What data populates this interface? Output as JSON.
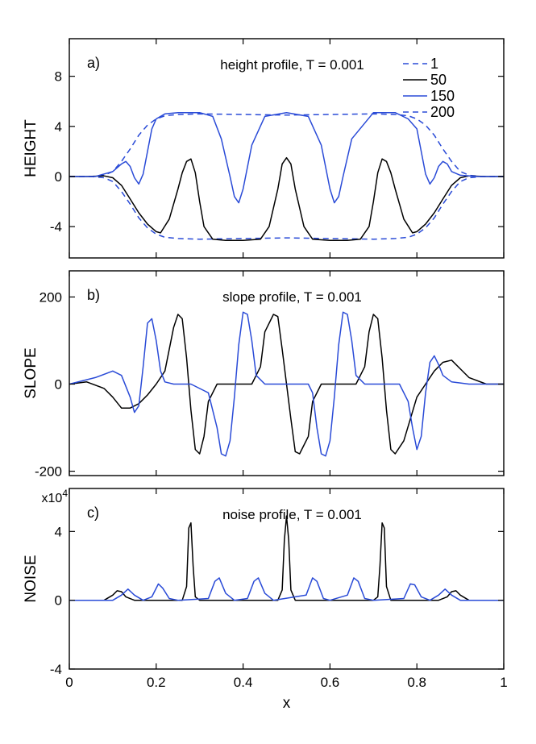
{
  "colors": {
    "blue": "#2a4bd7",
    "black": "#000000"
  },
  "chart_data": [
    {
      "type": "line",
      "panel_tag": "a)",
      "title": "height profile, T = 0.001",
      "xlabel": "",
      "ylabel": "HEIGHT",
      "xlim": [
        0,
        1
      ],
      "ylim": [
        -6.5,
        11
      ],
      "yticks": [
        -4,
        0,
        4,
        8
      ],
      "ytick_labels": [
        "-4",
        "0",
        "4",
        "8"
      ],
      "legend": {
        "position": "top-right",
        "entries": [
          "1",
          "50",
          "150",
          "200"
        ]
      },
      "series": [
        {
          "name": "1",
          "color": "#2a4bd7",
          "dash": "dashed",
          "x": [
            0,
            0.05,
            0.08,
            0.1,
            0.12,
            0.14,
            0.16,
            0.18,
            0.2,
            0.22,
            0.25,
            0.3,
            0.4,
            0.5,
            0.6,
            0.7,
            0.75,
            0.78,
            0.8,
            0.82,
            0.84,
            0.86,
            0.88,
            0.9,
            0.92,
            0.95,
            1.0
          ],
          "y": [
            0,
            0,
            0.1,
            0.4,
            1.2,
            2.2,
            3.3,
            4.1,
            4.6,
            4.85,
            4.95,
            5.0,
            4.95,
            4.9,
            4.95,
            5.0,
            4.95,
            4.85,
            4.6,
            4.1,
            3.3,
            2.2,
            1.2,
            0.4,
            0.1,
            0,
            0
          ]
        },
        {
          "name": "1 (lower)",
          "color": "#2a4bd7",
          "dash": "dashed",
          "x": [
            0,
            0.05,
            0.08,
            0.1,
            0.12,
            0.14,
            0.16,
            0.18,
            0.2,
            0.22,
            0.25,
            0.3,
            0.4,
            0.5,
            0.6,
            0.7,
            0.75,
            0.78,
            0.8,
            0.82,
            0.84,
            0.86,
            0.88,
            0.9,
            0.92,
            0.95,
            1.0
          ],
          "y": [
            0,
            0,
            -0.1,
            -0.4,
            -1.2,
            -2.2,
            -3.3,
            -4.1,
            -4.6,
            -4.85,
            -4.95,
            -5.0,
            -4.95,
            -4.9,
            -4.95,
            -5.0,
            -4.95,
            -4.85,
            -4.6,
            -4.1,
            -3.3,
            -2.2,
            -1.2,
            -0.4,
            -0.1,
            0,
            0
          ]
        },
        {
          "name": "50",
          "color": "#000000",
          "dash": "solid",
          "x": [
            0,
            0.04,
            0.08,
            0.1,
            0.12,
            0.14,
            0.16,
            0.18,
            0.2,
            0.21,
            0.23,
            0.25,
            0.26,
            0.27,
            0.28,
            0.29,
            0.3,
            0.31,
            0.33,
            0.36,
            0.4,
            0.44,
            0.46,
            0.48,
            0.49,
            0.5,
            0.51,
            0.52,
            0.54,
            0.56,
            0.6,
            0.64,
            0.67,
            0.69,
            0.7,
            0.71,
            0.72,
            0.73,
            0.74,
            0.75,
            0.77,
            0.79,
            0.8,
            0.82,
            0.84,
            0.86,
            0.88,
            0.9,
            0.92,
            0.96,
            1.0
          ],
          "y": [
            0,
            0,
            0.05,
            -0.1,
            -0.7,
            -1.8,
            -2.9,
            -3.8,
            -4.4,
            -4.5,
            -3.4,
            -1.0,
            0.3,
            1.2,
            1.4,
            0.3,
            -2.0,
            -4.0,
            -5.0,
            -5.1,
            -5.1,
            -5.0,
            -4.0,
            -1.0,
            1.0,
            1.5,
            1.0,
            -1.0,
            -4.0,
            -5.0,
            -5.1,
            -5.1,
            -5.0,
            -4.0,
            -2.0,
            0.3,
            1.4,
            1.2,
            0.3,
            -1.0,
            -3.4,
            -4.5,
            -4.4,
            -3.8,
            -2.9,
            -1.8,
            -0.7,
            -0.1,
            0.05,
            0,
            0
          ]
        },
        {
          "name": "150",
          "color": "#2a4bd7",
          "dash": "solid",
          "x": [
            0,
            0.06,
            0.1,
            0.12,
            0.13,
            0.14,
            0.15,
            0.16,
            0.17,
            0.18,
            0.19,
            0.2,
            0.22,
            0.25,
            0.3,
            0.33,
            0.35,
            0.37,
            0.38,
            0.39,
            0.4,
            0.42,
            0.45,
            0.5,
            0.55,
            0.58,
            0.6,
            0.61,
            0.62,
            0.63,
            0.65,
            0.7,
            0.75,
            0.78,
            0.8,
            0.81,
            0.82,
            0.83,
            0.84,
            0.85,
            0.86,
            0.87,
            0.88,
            0.9,
            0.94,
            1.0
          ],
          "y": [
            0,
            0,
            0.4,
            1.0,
            1.2,
            0.8,
            -0.1,
            -0.6,
            0.2,
            2.0,
            3.8,
            4.6,
            5.0,
            5.1,
            5.1,
            4.8,
            3.0,
            0.0,
            -1.6,
            -2.1,
            -1.0,
            2.5,
            4.8,
            5.1,
            4.8,
            2.5,
            -1.0,
            -2.1,
            -1.6,
            0.0,
            3.0,
            5.1,
            5.1,
            4.6,
            3.8,
            2.0,
            0.2,
            -0.6,
            -0.1,
            0.8,
            1.2,
            1.0,
            0.4,
            0.1,
            0,
            0
          ]
        }
      ]
    },
    {
      "type": "line",
      "panel_tag": "b)",
      "title": "slope profile, T = 0.001",
      "xlabel": "",
      "ylabel": "SLOPE",
      "xlim": [
        0,
        1
      ],
      "ylim": [
        -210,
        260
      ],
      "yticks": [
        -200,
        0,
        200
      ],
      "ytick_labels": [
        "-200",
        "0",
        "200"
      ],
      "series": [
        {
          "name": "50",
          "color": "#000000",
          "dash": "solid",
          "x": [
            0,
            0.04,
            0.08,
            0.1,
            0.12,
            0.14,
            0.16,
            0.18,
            0.2,
            0.22,
            0.24,
            0.25,
            0.26,
            0.27,
            0.28,
            0.29,
            0.3,
            0.31,
            0.32,
            0.34,
            0.38,
            0.42,
            0.44,
            0.45,
            0.47,
            0.48,
            0.49,
            0.5,
            0.51,
            0.52,
            0.53,
            0.55,
            0.56,
            0.58,
            0.62,
            0.66,
            0.68,
            0.69,
            0.7,
            0.71,
            0.72,
            0.73,
            0.74,
            0.75,
            0.77,
            0.8,
            0.82,
            0.84,
            0.86,
            0.88,
            0.9,
            0.92,
            0.96,
            1.0
          ],
          "y": [
            0,
            5,
            -10,
            -30,
            -55,
            -55,
            -45,
            -25,
            0,
            30,
            130,
            160,
            150,
            60,
            -60,
            -150,
            -160,
            -120,
            -40,
            0,
            0,
            0,
            40,
            120,
            160,
            155,
            80,
            0,
            -80,
            -155,
            -160,
            -120,
            -40,
            0,
            0,
            0,
            40,
            120,
            160,
            150,
            60,
            -60,
            -150,
            -160,
            -130,
            -30,
            0,
            30,
            50,
            55,
            35,
            15,
            0,
            0
          ]
        },
        {
          "name": "150",
          "color": "#2a4bd7",
          "dash": "solid",
          "x": [
            0,
            0.06,
            0.1,
            0.12,
            0.14,
            0.15,
            0.16,
            0.17,
            0.18,
            0.19,
            0.2,
            0.21,
            0.22,
            0.24,
            0.28,
            0.32,
            0.34,
            0.35,
            0.36,
            0.37,
            0.38,
            0.39,
            0.4,
            0.41,
            0.42,
            0.43,
            0.45,
            0.5,
            0.55,
            0.56,
            0.57,
            0.58,
            0.59,
            0.6,
            0.61,
            0.62,
            0.63,
            0.64,
            0.65,
            0.66,
            0.68,
            0.72,
            0.76,
            0.78,
            0.79,
            0.8,
            0.81,
            0.82,
            0.83,
            0.84,
            0.85,
            0.86,
            0.88,
            0.92,
            1.0
          ],
          "y": [
            0,
            15,
            30,
            20,
            -30,
            -65,
            -50,
            40,
            140,
            150,
            100,
            30,
            5,
            0,
            0,
            -20,
            -100,
            -160,
            -165,
            -130,
            -30,
            90,
            165,
            160,
            100,
            20,
            0,
            0,
            0,
            -20,
            -100,
            -160,
            -165,
            -130,
            -30,
            90,
            165,
            160,
            100,
            20,
            0,
            0,
            0,
            -40,
            -100,
            -150,
            -120,
            -20,
            50,
            65,
            45,
            20,
            5,
            0,
            0
          ]
        }
      ]
    },
    {
      "type": "line",
      "panel_tag": "c)",
      "title": "noise profile, T = 0.001",
      "xlabel": "x",
      "ylabel": "NOISE",
      "scale_label": "x10",
      "scale_exponent": "4",
      "xlim": [
        0,
        1
      ],
      "ylim": [
        -4,
        6.5
      ],
      "yticks": [
        -4,
        0,
        4
      ],
      "ytick_labels": [
        "-4",
        "0",
        "4"
      ],
      "xticks": [
        0,
        0.2,
        0.4,
        0.6,
        0.8,
        1
      ],
      "xtick_labels": [
        "0",
        "0.2",
        "0.4",
        "0.6",
        "0.8",
        "1"
      ],
      "series": [
        {
          "name": "50",
          "color": "#000000",
          "dash": "solid",
          "x": [
            0,
            0.08,
            0.1,
            0.11,
            0.12,
            0.13,
            0.15,
            0.26,
            0.27,
            0.275,
            0.28,
            0.285,
            0.29,
            0.3,
            0.48,
            0.49,
            0.495,
            0.5,
            0.505,
            0.51,
            0.52,
            0.7,
            0.71,
            0.715,
            0.72,
            0.725,
            0.73,
            0.74,
            0.85,
            0.87,
            0.88,
            0.89,
            0.9,
            0.92,
            1.0
          ],
          "y": [
            0,
            0,
            0.3,
            0.55,
            0.5,
            0.2,
            0,
            0,
            0.8,
            4.2,
            4.5,
            2.0,
            0.2,
            0,
            0,
            0.6,
            3.5,
            4.9,
            3.5,
            0.6,
            0,
            0,
            0.2,
            2.0,
            4.5,
            4.2,
            0.8,
            0,
            0,
            0.2,
            0.5,
            0.55,
            0.3,
            0,
            0
          ]
        },
        {
          "name": "150",
          "color": "#2a4bd7",
          "dash": "solid",
          "x": [
            0,
            0.1,
            0.12,
            0.135,
            0.15,
            0.17,
            0.19,
            0.205,
            0.215,
            0.23,
            0.25,
            0.32,
            0.335,
            0.345,
            0.36,
            0.38,
            0.41,
            0.425,
            0.435,
            0.45,
            0.47,
            0.545,
            0.56,
            0.57,
            0.585,
            0.6,
            0.64,
            0.655,
            0.665,
            0.68,
            0.7,
            0.77,
            0.785,
            0.795,
            0.81,
            0.83,
            0.85,
            0.865,
            0.88,
            0.9,
            1.0
          ],
          "y": [
            0,
            0,
            0.3,
            0.65,
            0.3,
            0,
            0.2,
            0.95,
            0.7,
            0.1,
            0,
            0.1,
            1.1,
            1.3,
            0.4,
            0,
            0.1,
            1.1,
            1.3,
            0.4,
            0,
            0.3,
            1.3,
            1.1,
            0.1,
            0,
            0.3,
            1.3,
            1.1,
            0.1,
            0,
            0.1,
            0.95,
            0.9,
            0.2,
            0,
            0.3,
            0.65,
            0.3,
            0,
            0
          ]
        }
      ]
    }
  ]
}
